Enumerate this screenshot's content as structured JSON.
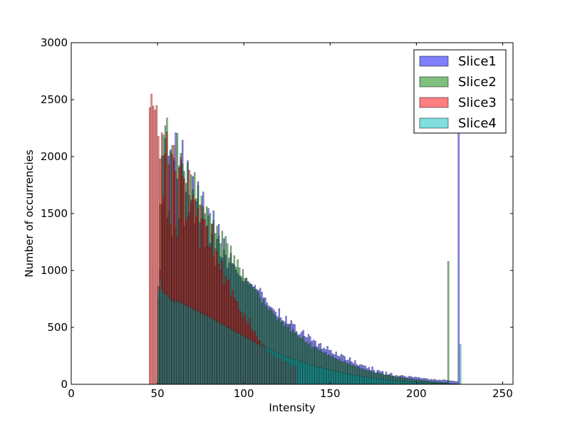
{
  "chart_data": {
    "type": "bar",
    "subtype": "overlapping-histogram",
    "title": "",
    "xlabel": "Intensity",
    "ylabel": "Number of occurrencies",
    "xlim": [
      0,
      256
    ],
    "ylim": [
      0,
      3000
    ],
    "xticks": [
      0,
      50,
      100,
      150,
      200,
      250
    ],
    "yticks": [
      0,
      500,
      1000,
      1500,
      2000,
      2500,
      3000
    ],
    "grid": false,
    "legend_position": "top-right",
    "series": [
      {
        "name": "Slice1",
        "color": "#0000ff",
        "bar_alpha": 0.5,
        "start_intensity": 50,
        "values": [
          760,
          1000,
          1580,
          2010,
          2160,
          1460,
          2005,
          2060,
          1300,
          1960,
          2210,
          1805,
          1455,
          1970,
          2145,
          1390,
          1690,
          1965,
          1510,
          1620,
          1825,
          1410,
          1605,
          1780,
          1420,
          1460,
          1690,
          1205,
          1390,
          1545,
          1240,
          1315,
          1525,
          1040,
          1275,
          1405,
          1120,
          1110,
          1280,
          1135,
          1020,
          1065,
          1150,
          1060,
          1050,
          1005,
          975,
          955,
          935,
          905,
          905,
          930,
          895,
          890,
          875,
          855,
          870,
          835,
          825,
          845,
          810,
          760,
          760,
          715,
          690,
          680,
          670,
          655,
          635,
          595,
          665,
          585,
          555,
          550,
          600,
          530,
          530,
          560,
          530,
          525,
          465,
          435,
          440,
          460,
          475,
          420,
          410,
          440,
          420,
          380,
          390,
          380,
          330,
          355,
          360,
          310,
          320,
          305,
          335,
          300,
          300,
          270,
          260,
          285,
          250,
          245,
          265,
          255,
          245,
          210,
          215,
          235,
          200,
          185,
          210,
          175,
          165,
          175,
          170,
          165,
          160,
          140,
          150,
          125,
          155,
          125,
          100,
          125,
          120,
          110,
          115,
          80,
          110,
          80,
          90,
          100,
          75,
          65,
          80,
          70,
          75,
          80,
          75,
          70,
          60,
          70,
          70,
          65,
          60,
          65,
          60,
          60,
          55,
          50,
          55,
          50,
          50,
          40,
          45,
          40,
          45,
          40,
          35,
          40,
          35,
          40,
          40,
          35,
          35,
          30,
          30,
          30,
          25,
          25,
          2320
        ]
      },
      {
        "name": "Slice2",
        "color": "#008000",
        "bar_alpha": 0.5,
        "start_intensity": 50,
        "values": [
          860,
          1580,
          2005,
          2190,
          2270,
          2340,
          1520,
          2040,
          2100,
          1990,
          1390,
          2205,
          1920,
          2030,
          1935,
          1870,
          1765,
          1945,
          1660,
          1840,
          1710,
          1860,
          1630,
          1745,
          1575,
          1655,
          1555,
          1500,
          1560,
          1480,
          1500,
          1405,
          1440,
          1325,
          1390,
          1300,
          1235,
          1345,
          1180,
          1300,
          1235,
          1110,
          1215,
          1060,
          1130,
          1030,
          1095,
          1025,
          950,
          1010,
          930,
          935,
          905,
          875,
          880,
          855,
          835,
          820,
          805,
          765,
          715,
          745,
          695,
          680,
          650,
          665,
          640,
          615,
          600,
          565,
          580,
          545,
          560,
          510,
          530,
          500,
          520,
          460,
          480,
          450,
          455,
          420,
          410,
          400,
          420,
          370,
          370,
          350,
          365,
          320,
          325,
          330,
          315,
          300,
          305,
          285,
          275,
          280,
          255,
          260,
          245,
          250,
          230,
          225,
          215,
          220,
          200,
          195,
          205,
          185,
          175,
          190,
          165,
          165,
          160,
          150,
          155,
          140,
          135,
          135,
          125,
          120,
          120,
          110,
          110,
          105,
          100,
          105,
          95,
          90,
          95,
          85,
          80,
          85,
          80,
          75,
          70,
          75,
          65,
          60,
          65,
          60,
          55,
          55,
          50,
          50,
          50,
          45,
          45,
          40,
          40,
          40,
          35,
          35,
          35,
          30,
          30,
          30,
          25,
          25,
          25,
          20,
          20,
          20,
          20,
          15,
          15,
          15,
          1080
        ]
      },
      {
        "name": "Slice3",
        "color": "#ff0000",
        "bar_alpha": 0.5,
        "start_intensity": 45,
        "values": [
          2430,
          2550,
          2445,
          2410,
          2450,
          2180,
          1980,
          2210,
          1640,
          2020,
          2215,
          1930,
          1400,
          2020,
          2100,
          1870,
          1295,
          1900,
          1995,
          1830,
          1805,
          1435,
          1470,
          1880,
          1590,
          1660,
          1620,
          1475,
          1545,
          1190,
          1575,
          1440,
          1450,
          1385,
          1215,
          1200,
          1410,
          1115,
          1190,
          1165,
          1055,
          1005,
          1080,
          875,
          945,
          910,
          920,
          775,
          825,
          760,
          730,
          720,
          650,
          635,
          585,
          620,
          555,
          520,
          580,
          485,
          465,
          460,
          425,
          380,
          380,
          340,
          355,
          320,
          295,
          280,
          275,
          245,
          270,
          240,
          220,
          240,
          220,
          200,
          195,
          200,
          190,
          175,
          155,
          175,
          155,
          160
        ]
      },
      {
        "name": "Slice4",
        "color": "#00bfbf",
        "bar_alpha": 0.5,
        "start_intensity": 50,
        "values": [
          820,
          930,
          830,
          805,
          790,
          790,
          765,
          745,
          740,
          720,
          735,
          730,
          725,
          710,
          720,
          700,
          695,
          680,
          685,
          670,
          660,
          655,
          650,
          640,
          630,
          625,
          615,
          610,
          600,
          595,
          590,
          580,
          570,
          560,
          555,
          545,
          535,
          530,
          520,
          510,
          500,
          495,
          485,
          475,
          470,
          460,
          450,
          445,
          435,
          425,
          420,
          410,
          400,
          395,
          385,
          375,
          370,
          360,
          355,
          345,
          340,
          330,
          325,
          320,
          310,
          305,
          295,
          290,
          285,
          275,
          270,
          265,
          255,
          250,
          245,
          240,
          235,
          230,
          225,
          220,
          215,
          210,
          205,
          200,
          195,
          190,
          185,
          180,
          175,
          170,
          165,
          160,
          155,
          150,
          148,
          145,
          140,
          135,
          132,
          128,
          125,
          120,
          117,
          113,
          110,
          107,
          104,
          100,
          97,
          94,
          91,
          88,
          85,
          82,
          80,
          77,
          74,
          72,
          69,
          67,
          64,
          62,
          60,
          58,
          56,
          54,
          52,
          50,
          48,
          46,
          44,
          42,
          40,
          39,
          37,
          36,
          34,
          33,
          31,
          30,
          29,
          27,
          26,
          25,
          24,
          23,
          22,
          21,
          20,
          19,
          18,
          17,
          16,
          15,
          15,
          14,
          13,
          12,
          12,
          11,
          10,
          10,
          9,
          9,
          8,
          8,
          7,
          7,
          6,
          6,
          5,
          5,
          5,
          4,
          4,
          350
        ]
      }
    ]
  }
}
